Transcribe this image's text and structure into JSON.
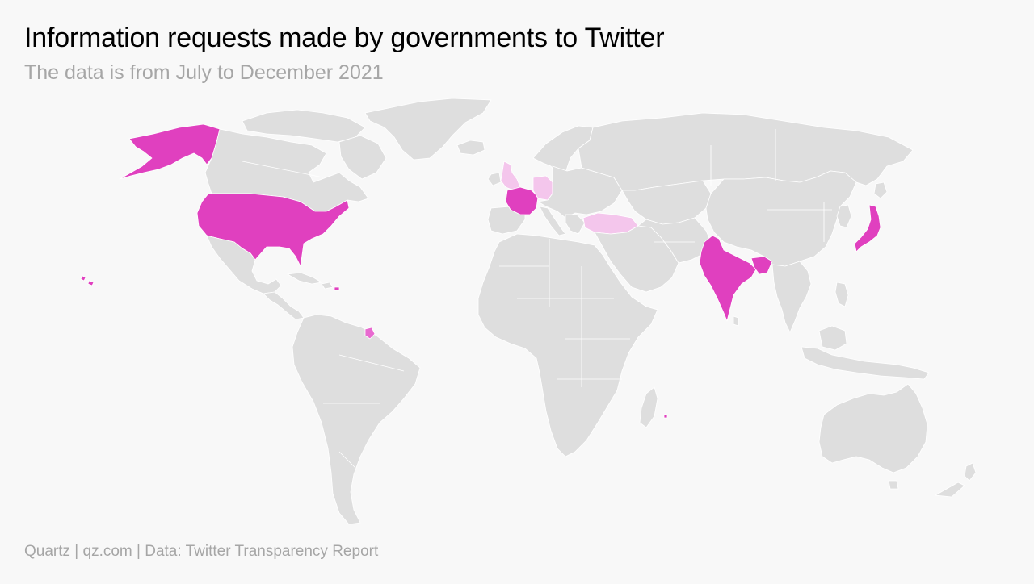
{
  "header": {
    "title": "Information requests made by governments to Twitter",
    "subtitle": "The data is from July to December 2021"
  },
  "footer": {
    "source": "Quartz | qz.com | Data: Twitter Transparency Report"
  },
  "map": {
    "type": "choropleth",
    "projection": "world",
    "colors": {
      "background": "#f8f8f8",
      "land": "#dedede",
      "high": "#e040bf",
      "mid": "#e86ad0",
      "low": "#f4c6ec"
    },
    "highlighted_regions": [
      {
        "region": "United States",
        "level": "high"
      },
      {
        "region": "Alaska",
        "level": "high"
      },
      {
        "region": "Hawaii",
        "level": "high"
      },
      {
        "region": "Puerto Rico",
        "level": "high"
      },
      {
        "region": "France",
        "level": "high"
      },
      {
        "region": "French Guiana",
        "level": "mid"
      },
      {
        "region": "Reunion",
        "level": "high"
      },
      {
        "region": "India",
        "level": "high"
      },
      {
        "region": "Japan",
        "level": "high"
      },
      {
        "region": "United Kingdom",
        "level": "low"
      },
      {
        "region": "Germany",
        "level": "low"
      },
      {
        "region": "Turkey",
        "level": "low"
      }
    ]
  }
}
